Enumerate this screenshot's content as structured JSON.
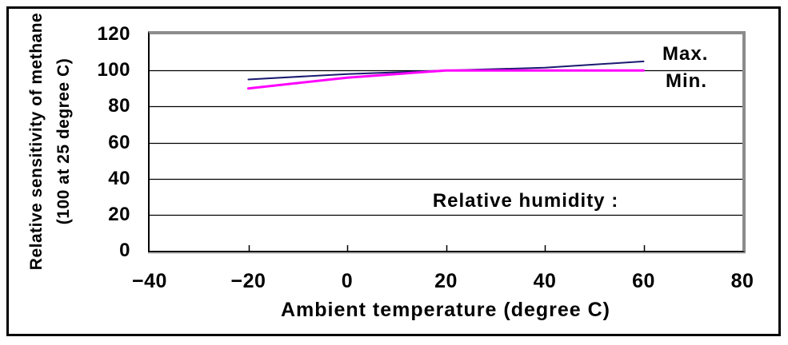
{
  "figure": {
    "ylabel_line1": "Relative sensitivity of methane",
    "ylabel_line2": "(100 at 25 degree C)"
  },
  "chart_data": {
    "type": "line",
    "title": "",
    "xlabel": "Ambient temperature (degree C)",
    "ylabel": "Relative sensitivity of methane (100 at 25 degree C)",
    "annotation": "Relative humidity :",
    "xlim": [
      -40,
      80
    ],
    "ylim": [
      0,
      120
    ],
    "xticks": [
      -40,
      -20,
      0,
      20,
      40,
      60,
      80
    ],
    "xtick_labels": [
      "−40",
      "−20",
      "0",
      "20",
      "40",
      "60",
      "80"
    ],
    "yticks": [
      0,
      20,
      40,
      60,
      80,
      100,
      120
    ],
    "inner_xticks": [
      -20,
      0,
      20,
      40,
      60
    ],
    "grid": "horizontal",
    "legend_position": "inside-right",
    "x": [
      -20,
      0,
      20,
      40,
      60
    ],
    "series": [
      {
        "name": "Max.",
        "values": [
          95,
          98,
          100,
          101.5,
          105
        ],
        "color": "#191970",
        "width": 2
      },
      {
        "name": "Min.",
        "values": [
          90,
          96,
          100,
          100,
          100
        ],
        "color": "#ff00ff",
        "width": 3
      }
    ]
  }
}
